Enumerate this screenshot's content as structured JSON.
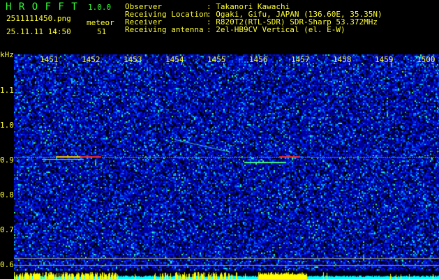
{
  "app": {
    "name": "H R O F F T",
    "version": "1.0.0"
  },
  "file": {
    "name": "2511111450.png",
    "datetime": "25.11.11 14:50"
  },
  "detection": {
    "label": "meteor",
    "count": "51"
  },
  "info": [
    {
      "key": "Observer",
      "value": ": Takanori Kawachi"
    },
    {
      "key": "Receiving Location",
      "value": ": Ogaki, Gifu, JAPAN (136.60E, 35.35N)"
    },
    {
      "key": "Receiver",
      "value": ": R820T2(RTL-SDR) SDR-Sharp 53.372MHz"
    },
    {
      "key": "Receiving antenna",
      "value": ": 2el-HB9CV Vertical (el. E-W)"
    }
  ],
  "yaxis": {
    "unit": "kHz",
    "ticks": [
      "1.1",
      "1.0",
      "0.9",
      "0.8",
      "0.7",
      "0.6"
    ]
  },
  "xaxis": {
    "ticks": [
      "1451",
      "1452",
      "1453",
      "1454",
      "1455",
      "1456",
      "1457",
      "1458",
      "1459",
      "1500"
    ]
  },
  "colors": {
    "text": "#ffff33",
    "title": "#33ff33",
    "background": "#000000",
    "spectrum_low": "#0000c0",
    "level_high": "#ffff00",
    "level_low": "#00ffff"
  }
}
